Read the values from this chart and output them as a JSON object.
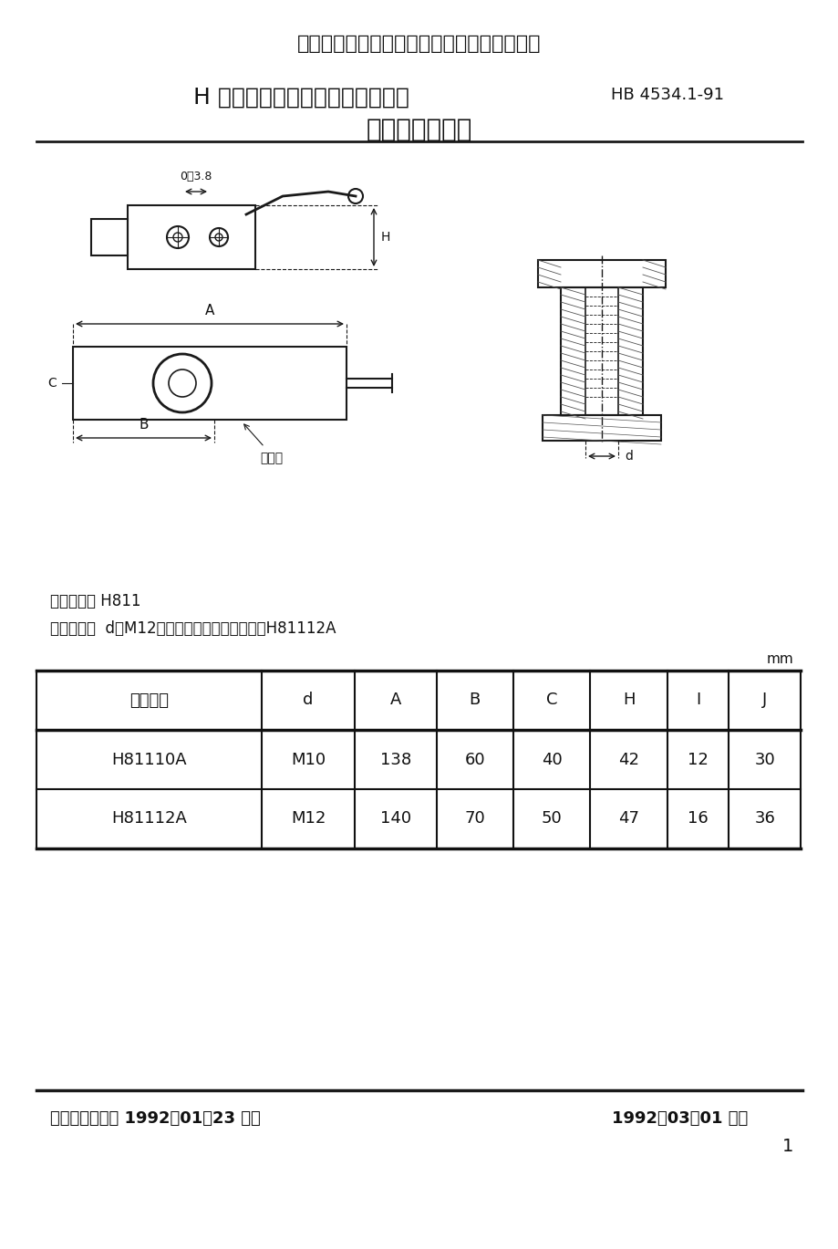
{
  "title_main": "中华人民共和国航空航天工业部航空工业标准",
  "title_sub1": "H 型孔系组合夹具成组定位夹紧件",
  "title_sub1_right": "HB 4534.1-91",
  "title_sub2": "螺旋凸轮卡紧爪",
  "classification_label": "分类代号：",
  "classification_value": "H811",
  "example_label": "标记示例：",
  "example_value": "d＝M12的螺旋凸轮卡紧爪的标记为H81112A",
  "unit_label": "mm",
  "table_headers": [
    "标记代号",
    "d",
    "A",
    "B",
    "C",
    "H",
    "I",
    "J"
  ],
  "table_rows": [
    [
      "H81110A",
      "M10",
      "138",
      "60",
      "40",
      "42",
      "12",
      "30"
    ],
    [
      "H81112A",
      "M12",
      "140",
      "70",
      "50",
      "47",
      "16",
      "36"
    ]
  ],
  "footer_left": "航空航天工业部 1992－01－23 发布",
  "footer_right_main": "1992－03－01",
  "footer_right_suffix": "实施",
  "page_number": "1",
  "bg_color": "#ffffff",
  "text_color": "#000000",
  "line_color": "#000000"
}
